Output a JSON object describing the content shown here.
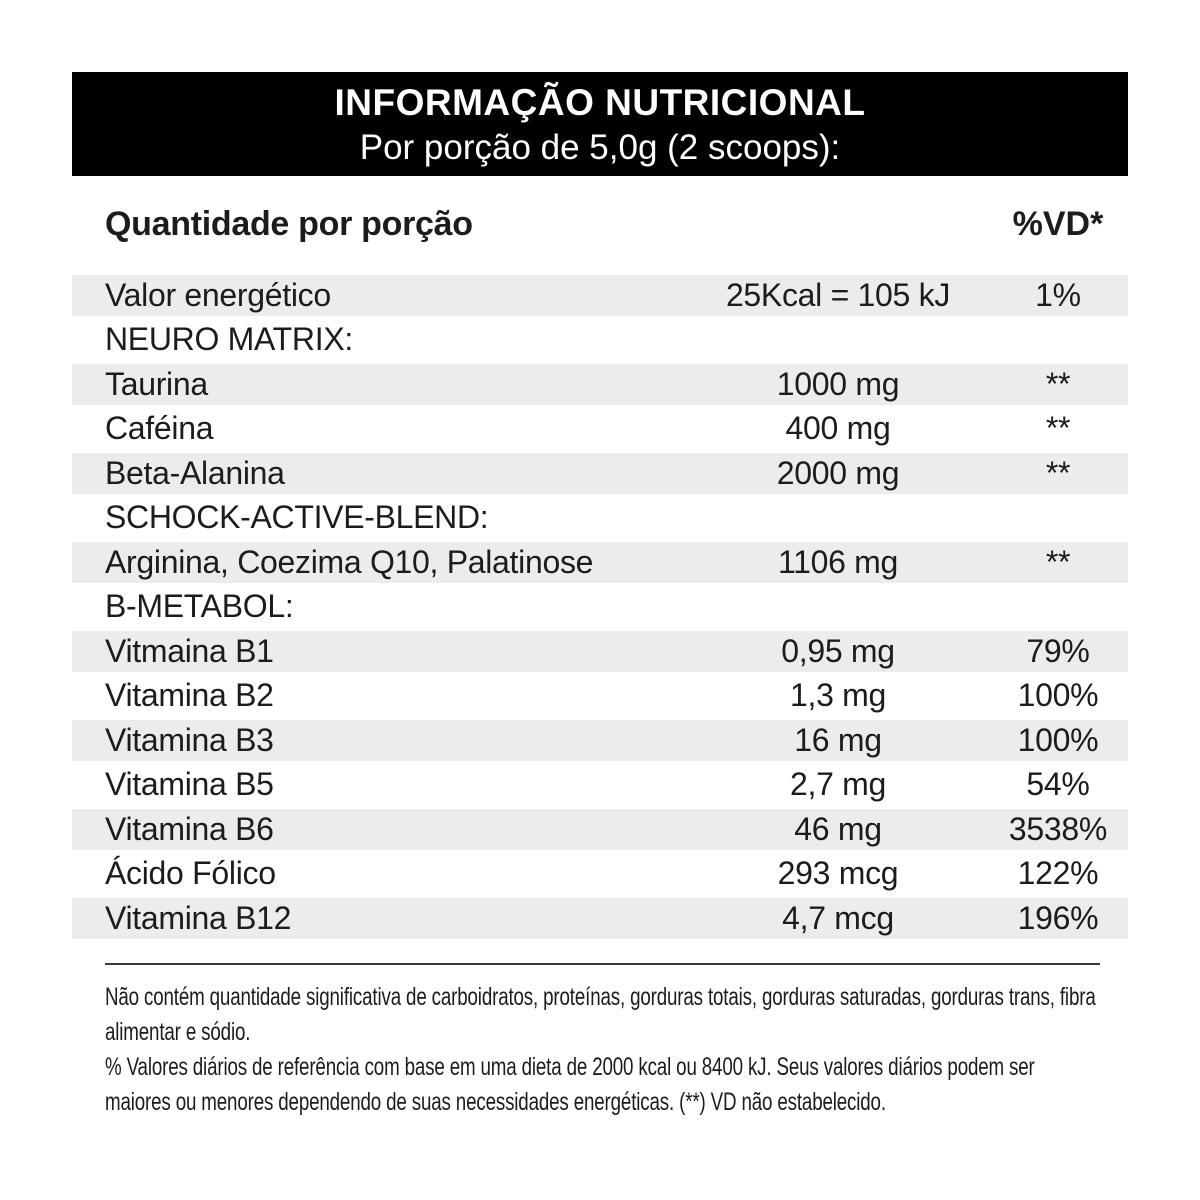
{
  "header": {
    "title": "INFORMAÇÃO NUTRICIONAL",
    "subtitle": "Por porção de 5,0g (2 scoops):"
  },
  "columns": {
    "amount_header": "Quantidade por porção",
    "dv_header": "%VD*"
  },
  "rows": [
    {
      "type": "item",
      "label": "Valor energético",
      "amount": "25Kcal = 105 kJ",
      "vd": "1%",
      "shaded": true
    },
    {
      "type": "section",
      "label": "NEURO MATRIX:",
      "shaded": false
    },
    {
      "type": "item",
      "label": "Taurina",
      "amount": "1000 mg",
      "vd": "**",
      "shaded": true
    },
    {
      "type": "item",
      "label": "Caféina",
      "amount": "400 mg",
      "vd": "**",
      "shaded": false
    },
    {
      "type": "item",
      "label": "Beta-Alanina",
      "amount": "2000 mg",
      "vd": "**",
      "shaded": true
    },
    {
      "type": "section",
      "label": "SCHOCK-ACTIVE-BLEND:",
      "shaded": false
    },
    {
      "type": "item",
      "label": "Arginina, Coezima Q10, Palatinose",
      "amount": "1106 mg",
      "vd": "**",
      "shaded": true
    },
    {
      "type": "section",
      "label": "B-METABOL:",
      "shaded": false
    },
    {
      "type": "item",
      "label": "Vitmaina B1",
      "amount": "0,95 mg",
      "vd": "79%",
      "shaded": true
    },
    {
      "type": "item",
      "label": "Vitamina B2",
      "amount": "1,3 mg",
      "vd": "100%",
      "shaded": false
    },
    {
      "type": "item",
      "label": "Vitamina B3",
      "amount": "16 mg",
      "vd": "100%",
      "shaded": true
    },
    {
      "type": "item",
      "label": "Vitamina B5",
      "amount": "2,7 mg",
      "vd": "54%",
      "shaded": false
    },
    {
      "type": "item",
      "label": "Vitamina B6",
      "amount": "46 mg",
      "vd": "3538%",
      "shaded": true
    },
    {
      "type": "item",
      "label": "Ácido Fólico",
      "amount": "293 mcg",
      "vd": "122%",
      "shaded": false
    },
    {
      "type": "item",
      "label": "Vitamina B12",
      "amount": "4,7 mcg",
      "vd": "196%",
      "shaded": true
    }
  ],
  "footnotes": [
    "Não contém quantidade significativa de carboidratos, proteínas, gorduras totais, gorduras saturadas, gorduras trans, fibra alimentar e sódio.",
    "% Valores diários de referência com base em uma dieta de 2000 kcal ou 8400 kJ. Seus valores diários podem ser maiores ou menores dependendo de suas necessidades energéticas. (**) VD não estabelecido."
  ],
  "colors": {
    "stripe": "#ececec",
    "bar": "#000000",
    "text": "#1c1c1c",
    "rule": "#3a3a3a"
  }
}
